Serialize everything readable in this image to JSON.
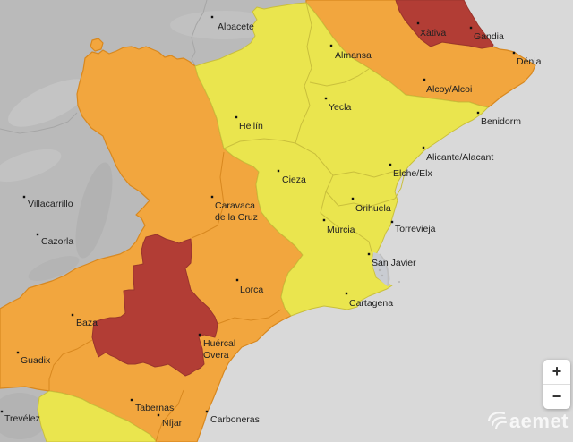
{
  "map": {
    "description": "AEMET weather warning map of south-eastern Spain",
    "warning_levels": {
      "yellow": "#eae54e",
      "orange": "#f2a63e",
      "red": "#b23d35"
    },
    "base_colors": {
      "sea": "#d9d9d9",
      "land_no_warning": "#bababa",
      "lagoon": "#c9ccd2",
      "yellow_border": "#c9bf3c",
      "orange_border": "#d8881f",
      "red_border": "#99352d",
      "land_border": "#a6a6a6",
      "label_text": "#222222",
      "label_dot": "#111111"
    },
    "labels": [
      {
        "name": "Albacete",
        "dot": [
          237,
          19
        ],
        "text": [
          243,
          33
        ],
        "lines": [
          "Albacete"
        ]
      },
      {
        "name": "Almansa",
        "dot": [
          370,
          51
        ],
        "text": [
          374,
          65
        ],
        "lines": [
          "Almansa"
        ]
      },
      {
        "name": "Xàtiva",
        "dot": [
          467,
          26
        ],
        "text": [
          469,
          40
        ],
        "lines": [
          "Xàtiva"
        ]
      },
      {
        "name": "Gandia",
        "dot": [
          526,
          31
        ],
        "text": [
          529,
          44
        ],
        "lines": [
          "Gandia"
        ]
      },
      {
        "name": "Dénia",
        "dot": [
          574,
          59
        ],
        "text": [
          577,
          72
        ],
        "lines": [
          "Dénia"
        ]
      },
      {
        "name": "Alcoy/Alcoi",
        "dot": [
          474,
          89
        ],
        "text": [
          476,
          103
        ],
        "lines": [
          "Alcoy/Alcoi"
        ]
      },
      {
        "name": "Benidorm",
        "dot": [
          534,
          126
        ],
        "text": [
          537,
          139
        ],
        "lines": [
          "Benidorm"
        ]
      },
      {
        "name": "Yecla",
        "dot": [
          364,
          110
        ],
        "text": [
          367,
          123
        ],
        "lines": [
          "Yecla"
        ]
      },
      {
        "name": "Hellín",
        "dot": [
          264,
          131
        ],
        "text": [
          267,
          144
        ],
        "lines": [
          "Hellín"
        ]
      },
      {
        "name": "Alicante/Alacant",
        "dot": [
          473,
          165
        ],
        "text": [
          476,
          179
        ],
        "lines": [
          "Alicante/Alacant"
        ]
      },
      {
        "name": "Elche/Elx",
        "dot": [
          436,
          184
        ],
        "text": [
          439,
          197
        ],
        "lines": [
          "Elche/Elx"
        ]
      },
      {
        "name": "Cieza",
        "dot": [
          311,
          191
        ],
        "text": [
          315,
          204
        ],
        "lines": [
          "Cieza"
        ]
      },
      {
        "name": "Orihuela",
        "dot": [
          394,
          222
        ],
        "text": [
          397,
          236
        ],
        "lines": [
          "Orihuela"
        ]
      },
      {
        "name": "Murcia",
        "dot": [
          362,
          246
        ],
        "text": [
          365,
          260
        ],
        "lines": [
          "Murcia"
        ]
      },
      {
        "name": "Torrevieja",
        "dot": [
          438,
          248
        ],
        "text": [
          441,
          259
        ],
        "lines": [
          "Torrevieja"
        ]
      },
      {
        "name": "Villacarrillo",
        "dot": [
          27,
          220
        ],
        "text": [
          31,
          231
        ],
        "lines": [
          "Villacarrillo"
        ]
      },
      {
        "name": "Caravaca de la Cruz",
        "dot": [
          237,
          220
        ],
        "text": [
          240,
          233
        ],
        "lines": [
          "Caravaca",
          "de la Cruz"
        ]
      },
      {
        "name": "Cazorla",
        "dot": [
          42,
          262
        ],
        "text": [
          46,
          273
        ],
        "lines": [
          "Cazorla"
        ]
      },
      {
        "name": "San Javier",
        "dot": [
          412,
          284
        ],
        "text": [
          415,
          297
        ],
        "lines": [
          "San Javier"
        ]
      },
      {
        "name": "Lorca",
        "dot": [
          265,
          313
        ],
        "text": [
          268,
          327
        ],
        "lines": [
          "Lorca"
        ]
      },
      {
        "name": "Cartagena",
        "dot": [
          387,
          328
        ],
        "text": [
          390,
          342
        ],
        "lines": [
          "Cartagena"
        ]
      },
      {
        "name": "Baza",
        "dot": [
          81,
          352
        ],
        "text": [
          85,
          364
        ],
        "lines": [
          "Baza"
        ]
      },
      {
        "name": "Huércal-Overa",
        "dot": [
          223,
          374
        ],
        "text": [
          227,
          387
        ],
        "lines": [
          "Huércal",
          "Overa"
        ]
      },
      {
        "name": "Guadix",
        "dot": [
          20,
          394
        ],
        "text": [
          23,
          406
        ],
        "lines": [
          "Guadix"
        ]
      },
      {
        "name": "Trevélez",
        "dot": [
          2,
          460
        ],
        "text": [
          5,
          471
        ],
        "lines": [
          "Trevélez"
        ]
      },
      {
        "name": "Tabernas",
        "dot": [
          147,
          447
        ],
        "text": [
          151,
          459
        ],
        "lines": [
          "Tabernas"
        ]
      },
      {
        "name": "Níjar",
        "dot": [
          177,
          464
        ],
        "text": [
          181,
          476
        ],
        "lines": [
          "Níjar"
        ]
      },
      {
        "name": "Carboneras",
        "dot": [
          231,
          460
        ],
        "text": [
          235,
          472
        ],
        "lines": [
          "Carboneras"
        ]
      }
    ]
  },
  "controls": {
    "zoom_in": "+",
    "zoom_out": "−"
  },
  "watermark": {
    "text": "aemet"
  }
}
